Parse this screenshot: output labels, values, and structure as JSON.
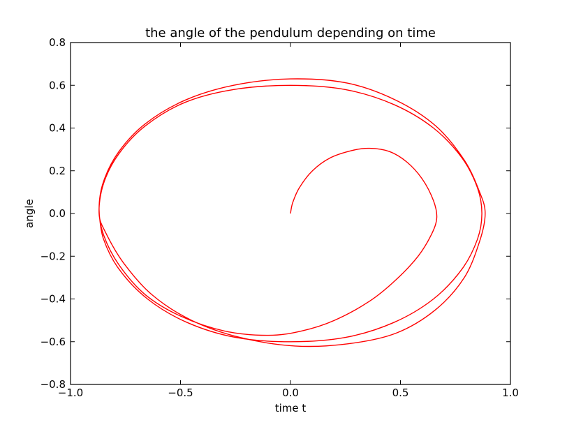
{
  "chart_data": {
    "type": "line",
    "title": "the angle of the pendulum depending on time",
    "xlabel": "time t",
    "ylabel": "angle",
    "xlim": [
      -1.0,
      1.0
    ],
    "ylim": [
      -0.8,
      0.8
    ],
    "xticks": [
      -1.0,
      -0.5,
      0.0,
      0.5,
      1.0
    ],
    "xtick_labels": [
      "−1.0",
      "−0.5",
      "0.0",
      "0.5",
      "1.0"
    ],
    "yticks": [
      -0.8,
      -0.6,
      -0.4,
      -0.2,
      0.0,
      0.2,
      0.4,
      0.6,
      0.8
    ],
    "ytick_labels": [
      "−0.8",
      "−0.6",
      "−0.4",
      "−0.2",
      "0.0",
      "0.2",
      "0.4",
      "0.6",
      "0.8"
    ],
    "grid": false,
    "series": [
      {
        "color": "#ff0000",
        "x": [
          0.0,
          0.01,
          0.04,
          0.1,
          0.18,
          0.28,
          0.36,
          0.45,
          0.53,
          0.6,
          0.65,
          0.665,
          0.64,
          0.58,
          0.48,
          0.36,
          0.2,
          0.05,
          -0.1,
          -0.3,
          -0.5,
          -0.66,
          -0.78,
          -0.85,
          -0.87,
          -0.85,
          -0.78,
          -0.66,
          -0.48,
          -0.26,
          0.0,
          0.26,
          0.48,
          0.66,
          0.79,
          0.86,
          0.885,
          0.86,
          0.79,
          0.66,
          0.48,
          0.26,
          0.02,
          -0.23,
          -0.45,
          -0.63,
          -0.76,
          -0.84,
          -0.87,
          -0.85,
          -0.78,
          -0.66,
          -0.48,
          -0.26,
          0.0,
          0.25,
          0.47,
          0.65,
          0.78,
          0.85,
          0.87,
          0.85,
          0.78,
          0.65,
          0.47,
          0.25,
          0.0,
          -0.25,
          -0.47,
          -0.65,
          -0.78,
          -0.85,
          -0.87
        ],
        "y": [
          0.0,
          0.05,
          0.12,
          0.2,
          0.26,
          0.295,
          0.305,
          0.29,
          0.24,
          0.16,
          0.06,
          -0.02,
          -0.1,
          -0.2,
          -0.31,
          -0.41,
          -0.5,
          -0.55,
          -0.57,
          -0.55,
          -0.48,
          -0.38,
          -0.24,
          -0.1,
          0.02,
          0.15,
          0.29,
          0.42,
          0.53,
          0.6,
          0.63,
          0.61,
          0.53,
          0.41,
          0.25,
          0.1,
          0.0,
          -0.13,
          -0.3,
          -0.45,
          -0.56,
          -0.61,
          -0.62,
          -0.58,
          -0.5,
          -0.38,
          -0.23,
          -0.09,
          0.0,
          0.14,
          0.28,
          0.41,
          0.52,
          0.58,
          0.6,
          0.58,
          0.51,
          0.4,
          0.26,
          0.12,
          0.0,
          -0.12,
          -0.26,
          -0.4,
          -0.51,
          -0.58,
          -0.6,
          -0.58,
          -0.51,
          -0.4,
          -0.26,
          -0.12,
          0.0
        ]
      }
    ]
  }
}
